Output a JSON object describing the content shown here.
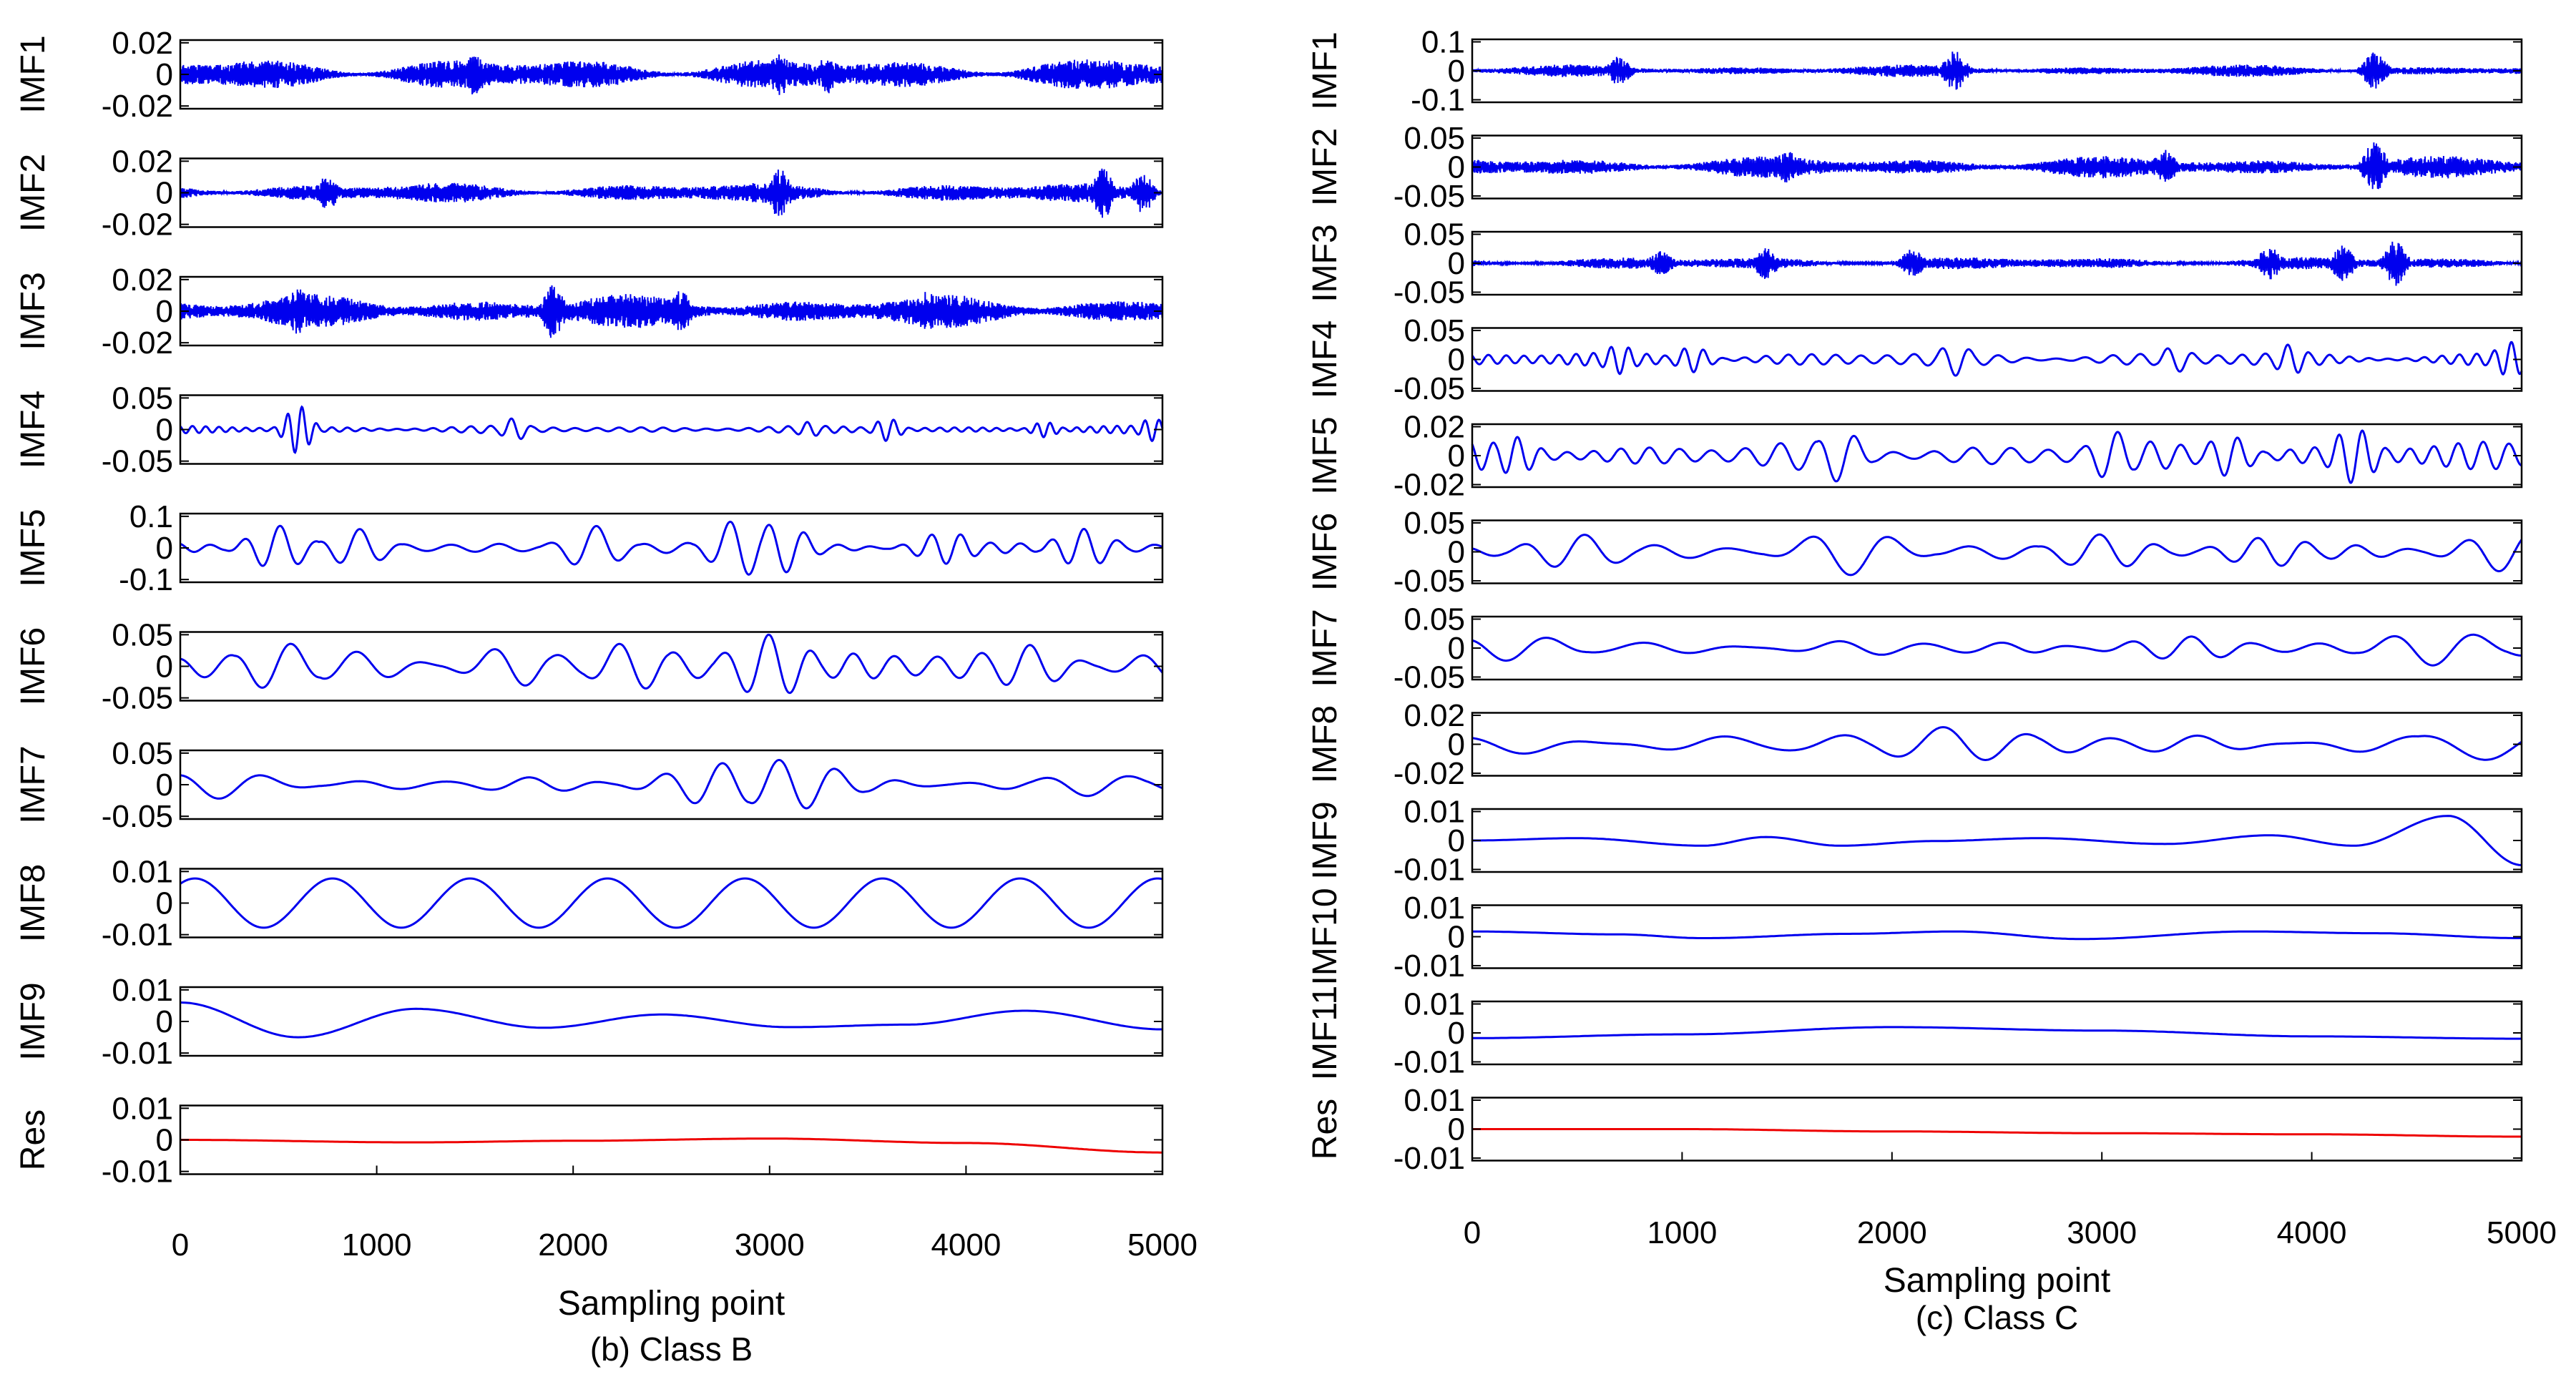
{
  "chart_data": [
    {
      "type": "line",
      "caption": "(b) Class B",
      "xlabel": "Sampling point",
      "xlim": [
        0,
        5000
      ],
      "xticks": [
        "0",
        "1000",
        "2000",
        "3000",
        "4000",
        "5000"
      ],
      "series_color": "#0000ee",
      "residual_color": "#ee0000",
      "panels": [
        {
          "label": "IMF1",
          "ylim": [
            -0.02,
            0.02
          ],
          "yticks": [
            "0.02",
            "0",
            "-0.02"
          ],
          "color": "#0000ee",
          "shape": {
            "kind": "noise",
            "amplitude": 0.011,
            "bursts": [
              [
                1500,
                0.014
              ],
              [
                3300,
                0.013
              ],
              [
                3050,
                0.014
              ]
            ]
          }
        },
        {
          "label": "IMF2",
          "ylim": [
            -0.02,
            0.02
          ],
          "yticks": [
            "0.02",
            "0",
            "-0.02"
          ],
          "color": "#0000ee",
          "shape": {
            "kind": "noise",
            "amplitude": 0.007,
            "bursts": [
              [
                3050,
                0.016
              ],
              [
                4700,
                0.016
              ],
              [
                750,
                0.011
              ],
              [
                4900,
                0.013
              ]
            ]
          }
        },
        {
          "label": "IMF3",
          "ylim": [
            -0.02,
            0.02
          ],
          "yticks": [
            "0.02",
            "0",
            "-0.02"
          ],
          "color": "#0000ee",
          "shape": {
            "kind": "noise",
            "amplitude": 0.011,
            "bursts": [
              [
                1900,
                0.018
              ],
              [
                600,
                0.015
              ],
              [
                2550,
                0.014
              ],
              [
                3800,
                0.013
              ]
            ]
          }
        },
        {
          "label": "IMF4",
          "ylim": [
            -0.05,
            0.05
          ],
          "yticks": [
            "0.05",
            "0",
            "-0.05"
          ],
          "color": "#0000ee",
          "shape": {
            "kind": "oscillation",
            "amplitude": 0.006,
            "period": 90,
            "bursts": [
              [
                600,
                0.038
              ],
              [
                1700,
                0.018
              ],
              [
                3200,
                0.012
              ],
              [
                3600,
                0.018
              ],
              [
                4400,
                0.012
              ],
              [
                4950,
                0.018
              ]
            ]
          }
        },
        {
          "label": "IMF5",
          "ylim": [
            -0.1,
            0.1
          ],
          "yticks": [
            "0.1",
            "0",
            "-0.1"
          ],
          "color": "#0000ee",
          "shape": {
            "kind": "oscillation",
            "amplitude": 0.018,
            "period": 200,
            "bursts": [
              [
                500,
                0.07
              ],
              [
                900,
                0.06
              ],
              [
                2100,
                0.07
              ],
              [
                2850,
                0.09
              ],
              [
                3050,
                0.08
              ],
              [
                3900,
                0.05
              ],
              [
                4600,
                0.06
              ]
            ]
          }
        },
        {
          "label": "IMF6",
          "ylim": [
            -0.05,
            0.05
          ],
          "yticks": [
            "0.05",
            "0",
            "-0.05"
          ],
          "color": "#0000ee",
          "shape": {
            "kind": "oscillation",
            "amplitude": 0.026,
            "period": 280,
            "bursts": [
              [
                500,
                0.038
              ],
              [
                2300,
                0.038
              ],
              [
                3000,
                0.05
              ],
              [
                4300,
                0.034
              ],
              [
                1700,
                0.032
              ]
            ]
          }
        },
        {
          "label": "IMF7",
          "ylim": [
            -0.05,
            0.05
          ],
          "yticks": [
            "0.05",
            "0",
            "-0.05"
          ],
          "color": "#0000ee",
          "shape": {
            "kind": "oscillation",
            "amplitude": 0.012,
            "period": 380,
            "bursts": [
              [
                2750,
                0.034
              ],
              [
                3100,
                0.04
              ],
              [
                200,
                0.022
              ],
              [
                4650,
                0.018
              ]
            ]
          }
        },
        {
          "label": "IMF8",
          "ylim": [
            -0.01,
            0.01
          ],
          "yticks": [
            "0.01",
            "0",
            "-0.01"
          ],
          "color": "#0000ee",
          "shape": {
            "kind": "sine",
            "amplitude": 0.0078,
            "period": 700,
            "phase": 0.9
          }
        },
        {
          "label": "IMF9",
          "ylim": [
            -0.01,
            0.01
          ],
          "yticks": [
            "0.01",
            "0",
            "-0.01"
          ],
          "color": "#0000ee",
          "shape": {
            "kind": "points",
            "x": [
              0,
              600,
              1200,
              1850,
              2450,
              3100,
              3700,
              4300,
              5000
            ],
            "y": [
              0.006,
              -0.005,
              0.004,
              -0.002,
              0.0022,
              -0.0018,
              -0.001,
              0.0034,
              -0.0025
            ]
          }
        },
        {
          "label": "Res",
          "ylim": [
            -0.01,
            0.01
          ],
          "yticks": [
            "0.01",
            "0",
            "-0.01"
          ],
          "color": "#ee0000",
          "shape": {
            "kind": "points",
            "x": [
              0,
              1200,
              2000,
              3000,
              4000,
              5000
            ],
            "y": [
              0.0,
              -0.0008,
              -0.0003,
              0.0004,
              -0.001,
              -0.004
            ]
          }
        }
      ]
    },
    {
      "type": "line",
      "caption": "(c) Class C",
      "xlabel": "Sampling point",
      "xlim": [
        0,
        5000
      ],
      "xticks": [
        "0",
        "1000",
        "2000",
        "3000",
        "4000",
        "5000"
      ],
      "series_color": "#0000ee",
      "residual_color": "#ee0000",
      "panels": [
        {
          "label": "IMF1",
          "ylim": [
            -0.1,
            0.1
          ],
          "yticks": [
            "0.1",
            "0",
            "-0.1"
          ],
          "color": "#0000ee",
          "shape": {
            "kind": "noise",
            "amplitude": 0.022,
            "bursts": [
              [
                2300,
                0.07
              ],
              [
                4300,
                0.065
              ],
              [
                700,
                0.05
              ]
            ]
          }
        },
        {
          "label": "IMF2",
          "ylim": [
            -0.05,
            0.05
          ],
          "yticks": [
            "0.05",
            "0",
            "-0.05"
          ],
          "color": "#0000ee",
          "shape": {
            "kind": "noise",
            "amplitude": 0.02,
            "bursts": [
              [
                4300,
                0.045
              ],
              [
                1500,
                0.03
              ],
              [
                3300,
                0.03
              ]
            ]
          }
        },
        {
          "label": "IMF3",
          "ylim": [
            -0.05,
            0.05
          ],
          "yticks": [
            "0.05",
            "0",
            "-0.05"
          ],
          "color": "#0000ee",
          "shape": {
            "kind": "noise",
            "amplitude": 0.012,
            "bursts": [
              [
                1400,
                0.028
              ],
              [
                2100,
                0.025
              ],
              [
                3800,
                0.03
              ],
              [
                4150,
                0.032
              ],
              [
                4400,
                0.04
              ],
              [
                900,
                0.022
              ]
            ]
          }
        },
        {
          "label": "IMF4",
          "ylim": [
            -0.05,
            0.05
          ],
          "yticks": [
            "0.05",
            "0",
            "-0.05"
          ],
          "color": "#0000ee",
          "shape": {
            "kind": "oscillation",
            "amplitude": 0.013,
            "period": 110,
            "bursts": [
              [
                700,
                0.025
              ],
              [
                1050,
                0.022
              ],
              [
                2300,
                0.028
              ],
              [
                3350,
                0.022
              ],
              [
                3900,
                0.026
              ],
              [
                4950,
                0.03
              ]
            ]
          }
        },
        {
          "label": "IMF5",
          "ylim": [
            -0.02,
            0.02
          ],
          "yticks": [
            "0.02",
            "0",
            "-0.02"
          ],
          "color": "#0000ee",
          "shape": {
            "kind": "oscillation",
            "amplitude": 0.01,
            "period": 150,
            "bursts": [
              [
                1750,
                0.018
              ],
              [
                3050,
                0.017
              ],
              [
                4200,
                0.019
              ],
              [
                200,
                0.013
              ],
              [
                3600,
                0.014
              ]
            ]
          }
        },
        {
          "label": "IMF6",
          "ylim": [
            -0.05,
            0.05
          ],
          "yticks": [
            "0.05",
            "0",
            "-0.05"
          ],
          "color": "#0000ee",
          "shape": {
            "kind": "oscillation",
            "amplitude": 0.012,
            "period": 310,
            "bursts": [
              [
                1800,
                0.04
              ],
              [
                500,
                0.03
              ],
              [
                3000,
                0.03
              ],
              [
                4950,
                0.035
              ],
              [
                3800,
                0.025
              ]
            ]
          }
        },
        {
          "label": "IMF7",
          "ylim": [
            -0.05,
            0.05
          ],
          "yticks": [
            "0.05",
            "0",
            "-0.05"
          ],
          "color": "#0000ee",
          "shape": {
            "kind": "oscillation",
            "amplitude": 0.014,
            "period": 380,
            "bursts": [
              [
                4600,
                0.03
              ],
              [
                200,
                0.022
              ],
              [
                3400,
                0.02
              ]
            ]
          }
        },
        {
          "label": "IMF8",
          "ylim": [
            -0.02,
            0.02
          ],
          "yticks": [
            "0.02",
            "0",
            "-0.02"
          ],
          "color": "#0000ee",
          "shape": {
            "kind": "oscillation",
            "amplitude": 0.0075,
            "period": 520,
            "bursts": [
              [
                2300,
                0.012
              ],
              [
                4900,
                0.011
              ]
            ]
          }
        },
        {
          "label": "IMF9",
          "ylim": [
            -0.01,
            0.01
          ],
          "yticks": [
            "0.01",
            "0",
            "-0.01"
          ],
          "color": "#0000ee",
          "shape": {
            "kind": "points",
            "x": [
              0,
              500,
              1100,
              1400,
              1750,
              2200,
              2700,
              3300,
              3800,
              4200,
              4650,
              5000
            ],
            "y": [
              0.0,
              0.0008,
              -0.0018,
              0.0012,
              -0.0018,
              -0.0002,
              0.0008,
              -0.0012,
              0.0018,
              -0.0018,
              0.0085,
              -0.0085
            ]
          }
        },
        {
          "label": "IMF10",
          "ylim": [
            -0.01,
            0.01
          ],
          "yticks": [
            "0.01",
            "0",
            "-0.01"
          ],
          "color": "#0000ee",
          "shape": {
            "kind": "points",
            "x": [
              0,
              700,
              1100,
              1800,
              2300,
              2900,
              3700,
              4300,
              5000
            ],
            "y": [
              0.0018,
              0.0008,
              -0.0005,
              0.001,
              0.0018,
              -0.0008,
              0.0018,
              0.0012,
              -0.0005
            ]
          }
        },
        {
          "label": "IMF11",
          "ylim": [
            -0.01,
            0.01
          ],
          "yticks": [
            "0.01",
            "0",
            "-0.01"
          ],
          "color": "#0000ee",
          "shape": {
            "kind": "points",
            "x": [
              0,
              1000,
              2000,
              3000,
              4000,
              5000
            ],
            "y": [
              -0.0018,
              -0.0005,
              0.002,
              0.0008,
              -0.0012,
              -0.002
            ]
          }
        },
        {
          "label": "Res",
          "ylim": [
            -0.01,
            0.01
          ],
          "yticks": [
            "0.01",
            "0",
            "-0.01"
          ],
          "color": "#ee0000",
          "shape": {
            "kind": "points",
            "x": [
              0,
              1000,
              2000,
              3000,
              4000,
              5000
            ],
            "y": [
              0.0,
              0.0,
              -0.0008,
              -0.0014,
              -0.0018,
              -0.0026
            ]
          }
        }
      ]
    }
  ]
}
